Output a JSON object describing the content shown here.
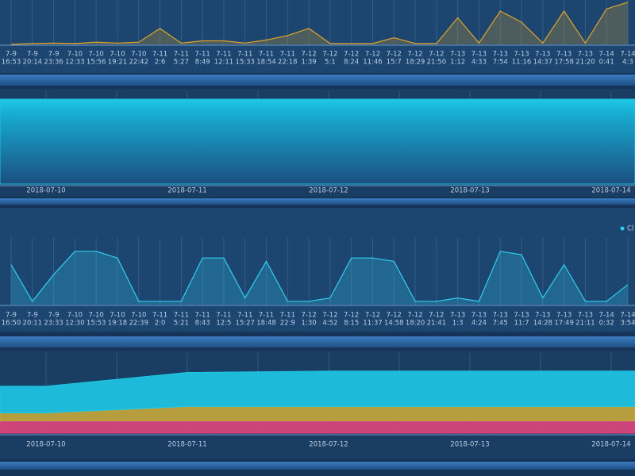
{
  "chart_data": [
    {
      "type": "line",
      "categories": [
        [
          "7-9",
          "16:53"
        ],
        [
          "7-9",
          "20:14"
        ],
        [
          "7-9",
          "23:36"
        ],
        [
          "7-10",
          "12:33"
        ],
        [
          "7-10",
          "15:56"
        ],
        [
          "7-10",
          "19:21"
        ],
        [
          "7-10",
          "22:42"
        ],
        [
          "7-11",
          "2:6"
        ],
        [
          "7-11",
          "5:27"
        ],
        [
          "7-11",
          "8:49"
        ],
        [
          "7-11",
          "12:11"
        ],
        [
          "7-11",
          "15:33"
        ],
        [
          "7-11",
          "18:54"
        ],
        [
          "7-11",
          "22:18"
        ],
        [
          "7-12",
          "1:39"
        ],
        [
          "7-12",
          "5:1"
        ],
        [
          "7-12",
          "8:24"
        ],
        [
          "7-12",
          "11:46"
        ],
        [
          "7-12",
          "15:7"
        ],
        [
          "7-12",
          "18:29"
        ],
        [
          "7-12",
          "21:50"
        ],
        [
          "7-13",
          "1:12"
        ],
        [
          "7-13",
          "4:33"
        ],
        [
          "7-13",
          "7:54"
        ],
        [
          "7-13",
          "11:16"
        ],
        [
          "7-13",
          "14:37"
        ],
        [
          "7-13",
          "17:58"
        ],
        [
          "7-13",
          "21:20"
        ],
        [
          "7-14",
          "0:41"
        ],
        [
          "7-14",
          "4:3"
        ]
      ],
      "series": [
        {
          "color": "#e0a526",
          "values": [
            0,
            2,
            3,
            2,
            5,
            3,
            5,
            36,
            3,
            8,
            8,
            3,
            10,
            20,
            36,
            2,
            2,
            2,
            15,
            2,
            2,
            60,
            3,
            75,
            50,
            3,
            75,
            3,
            80,
            95
          ]
        }
      ],
      "ylim": [
        0,
        100
      ],
      "grid": true
    },
    {
      "type": "area",
      "x": [
        "2018-07-10",
        "2018-07-11",
        "2018-07-12",
        "2018-07-13",
        "2018-07-14"
      ],
      "series": [
        {
          "color": "#19c3e6",
          "values": [
            100,
            100,
            100,
            100,
            100
          ]
        }
      ],
      "ylim": [
        0,
        100
      ],
      "grid": true
    },
    {
      "type": "line",
      "categories": [
        [
          "7-9",
          "16:50"
        ],
        [
          "7-9",
          "20:11"
        ],
        [
          "7-9",
          "23:33"
        ],
        [
          "7-10",
          "12:30"
        ],
        [
          "7-10",
          "15:53"
        ],
        [
          "7-10",
          "19:18"
        ],
        [
          "7-10",
          "22:39"
        ],
        [
          "7-11",
          "2:0"
        ],
        [
          "7-11",
          "5:21"
        ],
        [
          "7-11",
          "8:43"
        ],
        [
          "7-11",
          "12:5"
        ],
        [
          "7-11",
          "15:27"
        ],
        [
          "7-11",
          "18:48"
        ],
        [
          "7-11",
          "22:9"
        ],
        [
          "7-12",
          "1:30"
        ],
        [
          "7-12",
          "4:52"
        ],
        [
          "7-12",
          "8:15"
        ],
        [
          "7-12",
          "11:37"
        ],
        [
          "7-12",
          "14:58"
        ],
        [
          "7-12",
          "18:20"
        ],
        [
          "7-12",
          "21:41"
        ],
        [
          "7-13",
          "1:3"
        ],
        [
          "7-13",
          "4:24"
        ],
        [
          "7-13",
          "7:45"
        ],
        [
          "7-13",
          "11:7"
        ],
        [
          "7-13",
          "14:28"
        ],
        [
          "7-13",
          "17:49"
        ],
        [
          "7-13",
          "21:11"
        ],
        [
          "7-14",
          "0:32"
        ],
        [
          "7-14",
          "3:54"
        ]
      ],
      "series": [
        {
          "name": "Cl",
          "color": "#2fd0f0",
          "values": [
            60,
            5,
            45,
            80,
            80,
            70,
            5,
            5,
            5,
            70,
            70,
            10,
            65,
            5,
            5,
            10,
            70,
            70,
            65,
            5,
            5,
            10,
            5,
            80,
            75,
            10,
            60,
            5,
            5,
            30
          ]
        }
      ],
      "ylim": [
        0,
        100
      ],
      "grid": true,
      "legend": "top-right"
    },
    {
      "type": "stacked-area",
      "x": [
        "2018-07-10",
        "2018-07-11",
        "2018-07-12",
        "2018-07-13",
        "2018-07-14"
      ],
      "series": [
        {
          "color": "#e0457b",
          "values": [
            17,
            17,
            17,
            17,
            17
          ]
        },
        {
          "color": "#c8a93a",
          "values": [
            11,
            20,
            20,
            20,
            20
          ]
        },
        {
          "color": "#1ec8e6",
          "values": [
            37,
            47,
            49,
            49,
            49
          ]
        }
      ],
      "ylim": [
        0,
        100
      ],
      "grid": true
    }
  ]
}
